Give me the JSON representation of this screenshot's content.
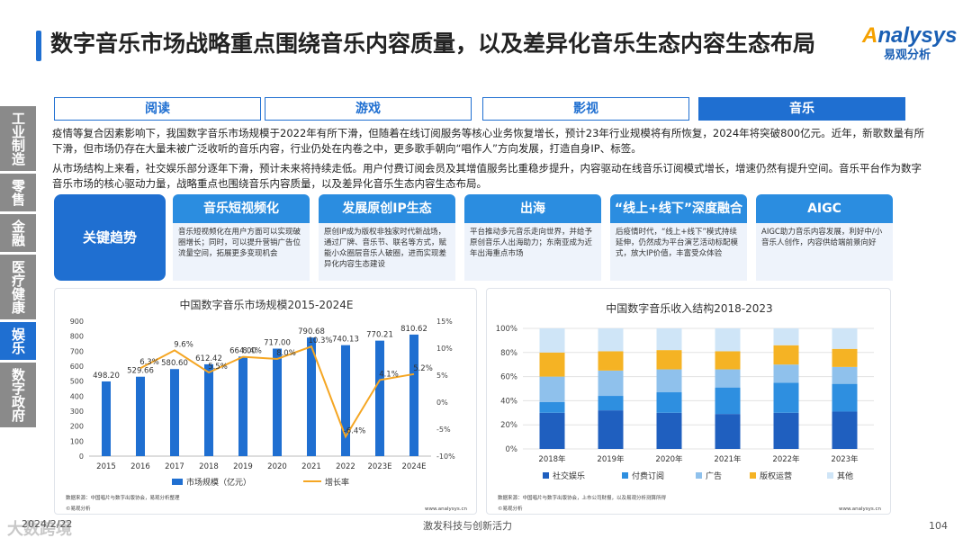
{
  "title": "数字音乐市场战略重点围绕音乐内容质量，以及差异化音乐生态内容生态布局",
  "logo": {
    "prefix": "A",
    "rest": "nalysys",
    "cn": "易观分析"
  },
  "side_tabs": [
    {
      "label": "工业制造",
      "active": false
    },
    {
      "label": "零售",
      "active": false
    },
    {
      "label": "金融",
      "active": false
    },
    {
      "label": "医疗健康",
      "active": false
    },
    {
      "label": "娱乐",
      "active": true
    },
    {
      "label": "数字政府",
      "active": false
    }
  ],
  "tabs": [
    {
      "label": "阅读",
      "active": false
    },
    {
      "label": "游戏",
      "active": false
    },
    {
      "label": "影视",
      "active": false
    },
    {
      "label": "音乐",
      "active": true
    }
  ],
  "paragraph1": "疫情等复合因素影响下，我国数字音乐市场规模于2022年有所下滑，但随着在线订阅服务等核心业务恢复增长，预计23年行业规模将有所恢复，2024年将突破800亿元。近年，新歌数量有所下滑，但市场仍存在大量未被广泛收听的音乐内容，行业仍处在内卷之中，更多歌手朝向“唱作人”方向发展，打造自身IP、标签。",
  "paragraph2": "从市场结构上来看，社交娱乐部分逐年下滑，预计未来将持续走低。用户付费订阅会员及其增值服务比重稳步提升，内容驱动在线音乐订阅模式增长，增速仍然有提升空间。音乐平台作为数字音乐市场的核心驱动力量，战略重点也围绕音乐内容质量，以及差异化音乐生态内容生态布局。",
  "key_trends_label": "关键趋势",
  "trends": [
    {
      "title": "音乐短视频化",
      "body": "音乐短视频化在用户方面可以实现破圈增长；同时，可以提升营销广告位流量空间，拓展更多变现机会"
    },
    {
      "title": "发展原创IP生态",
      "body": "原创IP成为版权非独家时代新战场，通过厂牌、音乐节、联名等方式，赋能小众圈层音乐人破圈，进而实现差异化内容生态建设"
    },
    {
      "title": "出海",
      "body": "平台推动多元音乐走向世界，并给予原创音乐人出海助力；东南亚成为近年出海重点市场"
    },
    {
      "title": "“线上+线下”深度融合",
      "body": "后疫情时代，“线上+线下”模式持续延伸，仍然成为平台演艺活动标配模式，放大IP价值，丰富受众体验"
    },
    {
      "title": "AIGC",
      "body": "AIGC助力音乐内容发展，利好中/小音乐人创作，内容供给端前景向好"
    }
  ],
  "chart_data": [
    {
      "type": "bar",
      "title": "中国数字音乐市场规模2015-2024E",
      "categories": [
        "2015",
        "2016",
        "2017",
        "2018",
        "2019",
        "2020",
        "2021",
        "2022",
        "2023E",
        "2024E"
      ],
      "series": [
        {
          "name": "市场规模（亿元）",
          "type": "bar",
          "color": "#1f6fd1",
          "axis": "left",
          "values": [
            498.2,
            529.66,
            580.6,
            612.42,
            664.0,
            717.0,
            790.68,
            740.13,
            770.21,
            810.62
          ],
          "labels": [
            "498.20",
            "529.66",
            "580.60",
            "612.42",
            "664.00",
            "717.00",
            "790.68",
            "740.13",
            "770.21",
            "810.62"
          ]
        },
        {
          "name": "增长率",
          "type": "line",
          "color": "#f5a623",
          "axis": "right",
          "values": [
            null,
            6.3,
            9.6,
            5.5,
            8.4,
            8.0,
            10.3,
            -6.4,
            4.1,
            5.2
          ],
          "labels": [
            "",
            "6.3%",
            "9.6%",
            "5.5%",
            "8.4%",
            "8.0%",
            "10.3%",
            "-6.4%",
            "4.1%",
            "5.2%"
          ]
        }
      ],
      "ylim": [
        0,
        900
      ],
      "yticks": [
        "0",
        "100",
        "200",
        "300",
        "400",
        "500",
        "600",
        "700",
        "800",
        "900"
      ],
      "y2lim": [
        -10,
        15
      ],
      "y2ticks": [
        "-10%",
        "-5%",
        "0%",
        "5%",
        "10%",
        "15%"
      ],
      "source": "数据来源：中国唱片与数字出版协会，易观分析整理",
      "brand": "©易观分析",
      "url": "www.analysys.cn"
    },
    {
      "type": "stacked_bar",
      "title": "中国数字音乐收入结构2018-2023",
      "categories": [
        "2018年",
        "2019年",
        "2020年",
        "2021年",
        "2022年",
        "2023年"
      ],
      "series": [
        {
          "name": "社交娱乐",
          "color": "#1f5fbf",
          "values": [
            30,
            32,
            30,
            29,
            30,
            31
          ]
        },
        {
          "name": "付费订阅",
          "color": "#2e8fe0",
          "values": [
            9,
            12,
            17,
            22,
            25,
            23
          ]
        },
        {
          "name": "广告",
          "color": "#8fc1ec",
          "values": [
            21,
            21,
            19,
            15,
            15,
            14
          ]
        },
        {
          "name": "版权运营",
          "color": "#f5b324",
          "values": [
            20,
            16,
            16,
            15,
            16,
            15
          ]
        },
        {
          "name": "其他",
          "color": "#cfe5f7",
          "values": [
            20,
            19,
            18,
            19,
            14,
            17
          ]
        }
      ],
      "ylim": [
        0,
        100
      ],
      "yticks": [
        "0%",
        "20%",
        "40%",
        "60%",
        "80%",
        "100%"
      ],
      "source": "数据来源：中国唱片与数字出版协会，上市公司财报，以及易观分析测算所得",
      "brand": "©易观分析",
      "url": "www.analysys.cn"
    }
  ],
  "footer": {
    "date": "2024/2/22",
    "slogan": "激发科技与创新活力",
    "page": "104",
    "watermark": "大数跨境"
  }
}
